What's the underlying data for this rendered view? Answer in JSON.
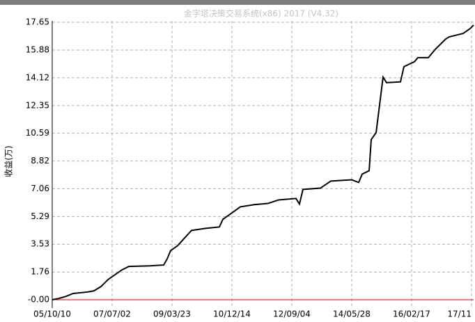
{
  "chart_data": {
    "type": "line",
    "title": "金字塔决策交易系统(x86) 2017 (V4.32)",
    "y_label": "收益(万)",
    "x": [
      0,
      10,
      20,
      30,
      50,
      60,
      70,
      80,
      90,
      100,
      110,
      140,
      160,
      165,
      170,
      180,
      190,
      200,
      220,
      240,
      245,
      255,
      270,
      290,
      310,
      325,
      350,
      355,
      360,
      385,
      400,
      430,
      440,
      445,
      455,
      458,
      465,
      470,
      475,
      480,
      500,
      505,
      520,
      525,
      540,
      550,
      565,
      570,
      590,
      600,
      605
    ],
    "series": [
      {
        "name": "收益",
        "color": "#000000",
        "values": [
          0,
          0.09,
          0.22,
          0.4,
          0.49,
          0.57,
          0.84,
          1.28,
          1.59,
          1.9,
          2.12,
          2.16,
          2.21,
          2.6,
          3.13,
          3.44,
          3.93,
          4.41,
          4.54,
          4.63,
          5.12,
          5.43,
          5.91,
          6.05,
          6.13,
          6.35,
          6.44,
          6.09,
          7.02,
          7.1,
          7.55,
          7.63,
          7.46,
          7.99,
          8.21,
          10.19,
          10.63,
          12.4,
          14.16,
          13.81,
          13.86,
          14.83,
          15.14,
          15.4,
          15.4,
          15.93,
          16.59,
          16.72,
          16.94,
          17.25,
          17.47
        ]
      }
    ],
    "xlim": [
      0,
      605
    ],
    "xticks": [
      {
        "value": 0,
        "label": "05/10/10"
      },
      {
        "value": 86,
        "label": "07/07/02"
      },
      {
        "value": 172,
        "label": "09/03/23"
      },
      {
        "value": 258,
        "label": "10/12/14"
      },
      {
        "value": 344,
        "label": "12/09/04"
      },
      {
        "value": 430,
        "label": "14/05/28"
      },
      {
        "value": 516,
        "label": "16/02/17"
      },
      {
        "value": 602,
        "label": "17/11"
      }
    ],
    "ylim": [
      -0.53,
      17.74
    ],
    "yticks": [
      {
        "value": 0,
        "label": "-0.00"
      },
      1.76,
      3.53,
      5.29,
      7.06,
      8.82,
      10.59,
      12.35,
      14.12,
      15.88,
      17.65
    ],
    "grid": true,
    "zero_line_color": "#e00000"
  }
}
